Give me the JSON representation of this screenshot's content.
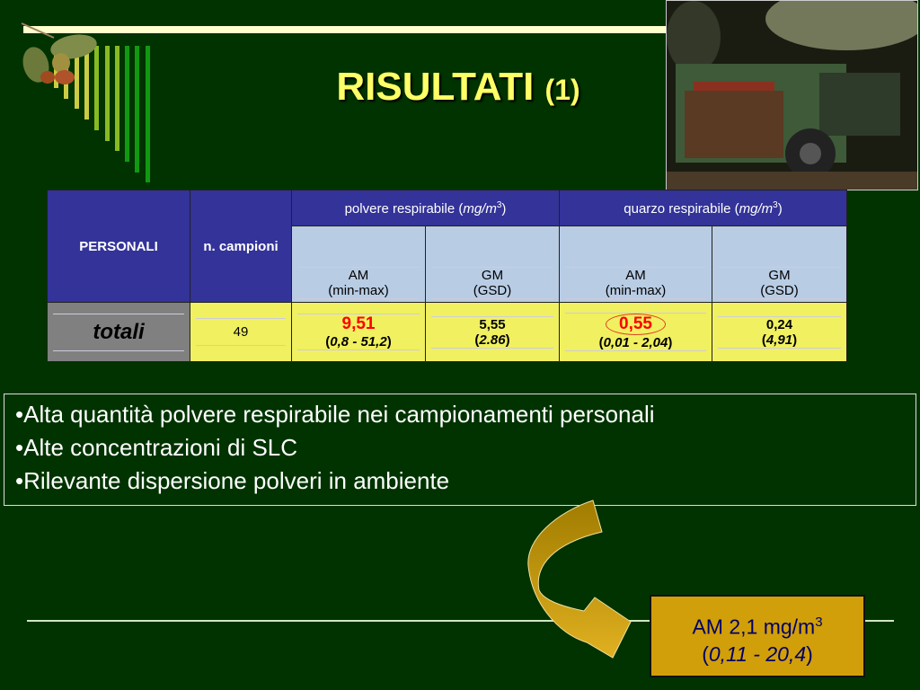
{
  "title": {
    "main": "RISULTATI",
    "number": "(1)"
  },
  "colors": {
    "background": "#003300",
    "title": "#ffff66",
    "header": "#333399",
    "subheader": "#b8cce4",
    "data_row": "#f0f060",
    "highlight": "#ff0000",
    "result_box": "#d19f09"
  },
  "decorations": {
    "branch": "hazelnut-branch-icon",
    "photo": "harvesting-machine-photo"
  },
  "table": {
    "col_personali": "PERSONALI",
    "col_campioni": "n. campioni",
    "group_polvere": "polvere respirabile (",
    "group_quarzo": "quarzo respirabile (",
    "unit": "mg/m",
    "unit_exp": "3",
    "close": ")",
    "sub": [
      {
        "top": "AM",
        "bottom": "(min-max)"
      },
      {
        "top": "GM",
        "bottom": "(GSD)"
      },
      {
        "top": "AM",
        "bottom": "(min-max)"
      },
      {
        "top": "GM",
        "bottom": "(GSD)"
      }
    ],
    "row": {
      "label": "totali",
      "n": "49",
      "polvere_am": "9,51",
      "polvere_range": "0,8 - 51,2",
      "polvere_gm": "5,55",
      "polvere_gsd": "2.86",
      "quarzo_am": "0,55",
      "quarzo_range": "0,01 - 2,04",
      "quarzo_gm": "0,24",
      "quarzo_gsd": "4,91"
    }
  },
  "bullets": [
    "•Alta quantità polvere respirabile nei campionamenti  personali",
    "•Alte concentrazioni di SLC",
    "•Rilevante dispersione polveri in ambiente"
  ],
  "result": {
    "line1": "AM 2,1 mg/m",
    "exp": "3",
    "range": "0,11 - 20,4"
  }
}
